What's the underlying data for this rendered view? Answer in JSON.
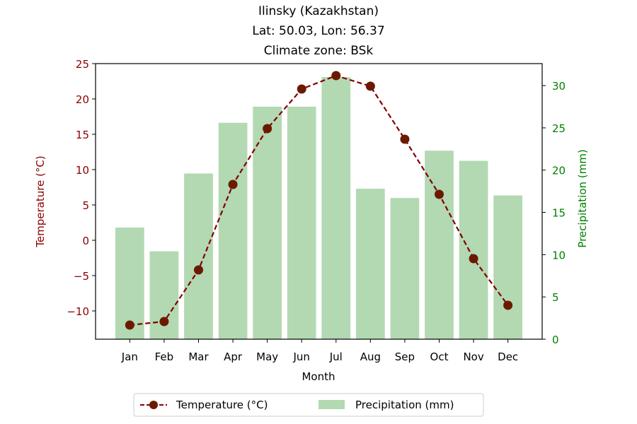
{
  "chart_data": {
    "type": "bar+line",
    "title_lines": [
      "Ilinsky (Kazakhstan)",
      "Lat: 50.03, Lon: 56.37",
      "Climate zone: BSk"
    ],
    "xlabel": "Month",
    "ylabel_left": "Temperature (°C)",
    "ylabel_right": "Precipitation (mm)",
    "categories": [
      "Jan",
      "Feb",
      "Mar",
      "Apr",
      "May",
      "Jun",
      "Jul",
      "Aug",
      "Sep",
      "Oct",
      "Nov",
      "Dec"
    ],
    "series": [
      {
        "name": "Temperature (°C)",
        "kind": "line",
        "axis": "left",
        "values": [
          -12.0,
          -11.5,
          -4.2,
          7.9,
          15.8,
          21.4,
          23.3,
          21.8,
          14.3,
          6.5,
          -2.6,
          -9.2
        ]
      },
      {
        "name": "Precipitation (mm)",
        "kind": "bar",
        "axis": "right",
        "values": [
          13.2,
          10.4,
          19.6,
          25.6,
          27.5,
          27.5,
          31.0,
          17.8,
          16.7,
          22.3,
          21.1,
          17.0
        ]
      }
    ],
    "ylim_left": [
      -14,
      25
    ],
    "yticks_left": [
      -10,
      -5,
      0,
      5,
      10,
      15,
      20,
      25
    ],
    "yticks_left_labels": [
      "−10",
      "−5",
      "0",
      "5",
      "10",
      "15",
      "20",
      "25"
    ],
    "ylim_right": [
      0,
      32.6
    ],
    "yticks_right": [
      0,
      5,
      10,
      15,
      20,
      25,
      30
    ],
    "legend_position": "bottom-center",
    "grid": false,
    "colors": {
      "temperature_line": "#800000",
      "temperature_marker": "#6b1a00",
      "left_axis": "#8b0000",
      "right_axis": "#008000",
      "bars": "#b2d9b2"
    }
  }
}
